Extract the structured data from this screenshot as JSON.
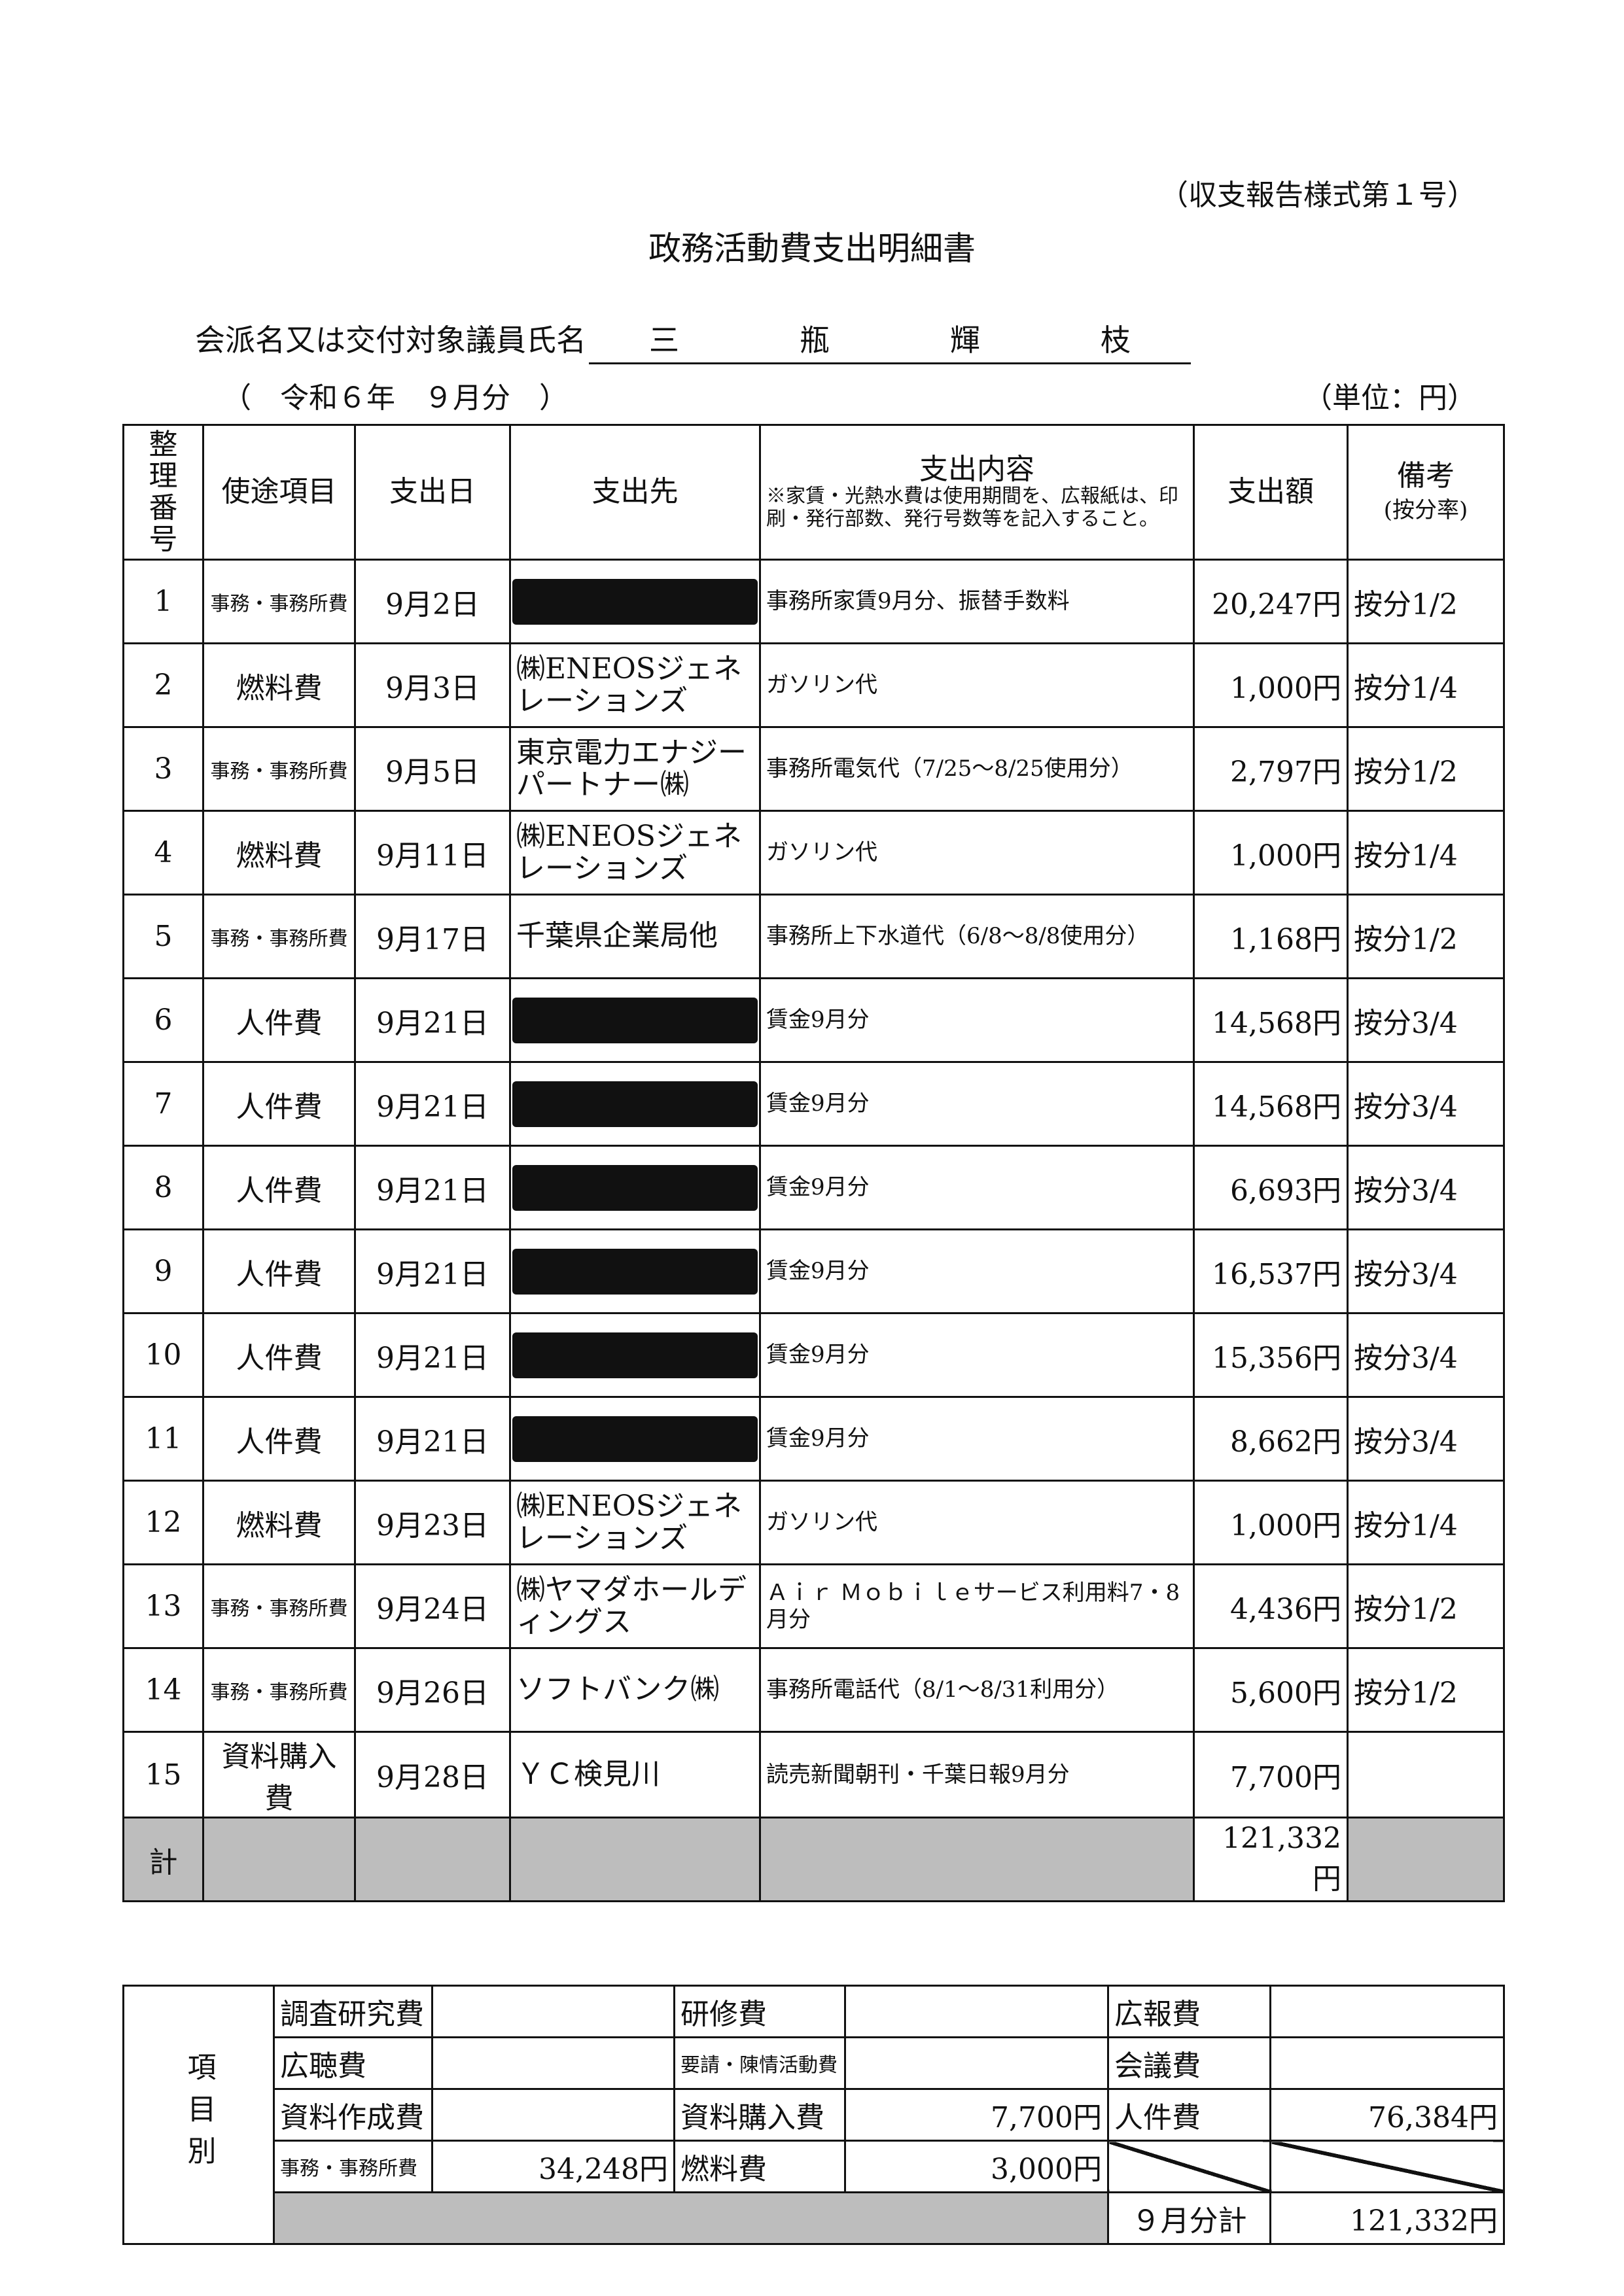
{
  "header": {
    "form_no": "（収支報告様式第１号）",
    "title": "政務活動費支出明細書",
    "name_label": "会派名又は交付対象議員氏名",
    "name_chars": [
      "三",
      "瓶",
      "輝",
      "枝"
    ],
    "period": "（　令和６年　９月分　）",
    "unit": "（単位：円）"
  },
  "columns": {
    "no": "整理番号",
    "category": "使途項目",
    "date": "支出日",
    "payee": "支出先",
    "content": "支出内容",
    "content_note": "※家賃・光熱水費は使用期間を、広報紙は、印刷・発行部数、発行号数等を記入すること。",
    "amount": "支出額",
    "remarks": "備考",
    "remarks_sub": "(按分率)"
  },
  "rows": [
    {
      "no": "1",
      "category": "事務・事務所費",
      "date": "9月2日",
      "payee": "",
      "redacted": true,
      "content": "事務所家賃9月分、振替手数料",
      "amount": "20,247円",
      "remarks": "按分1/2"
    },
    {
      "no": "2",
      "category": "燃料費",
      "date": "9月3日",
      "payee": "㈱ENEOSジェネレーションズ",
      "redacted": false,
      "content": "ガソリン代",
      "amount": "1,000円",
      "remarks": "按分1/4"
    },
    {
      "no": "3",
      "category": "事務・事務所費",
      "date": "9月5日",
      "payee": "東京電力エナジーパートナー㈱",
      "redacted": false,
      "content": "事務所電気代（7/25～8/25使用分）",
      "amount": "2,797円",
      "remarks": "按分1/2"
    },
    {
      "no": "4",
      "category": "燃料費",
      "date": "9月11日",
      "payee": "㈱ENEOSジェネレーションズ",
      "redacted": false,
      "content": "ガソリン代",
      "amount": "1,000円",
      "remarks": "按分1/4"
    },
    {
      "no": "5",
      "category": "事務・事務所費",
      "date": "9月17日",
      "payee": "千葉県企業局他",
      "redacted": false,
      "content": "事務所上下水道代（6/8～8/8使用分）",
      "amount": "1,168円",
      "remarks": "按分1/2"
    },
    {
      "no": "6",
      "category": "人件費",
      "date": "9月21日",
      "payee": "",
      "redacted": true,
      "content": "賃金9月分",
      "amount": "14,568円",
      "remarks": "按分3/4"
    },
    {
      "no": "7",
      "category": "人件費",
      "date": "9月21日",
      "payee": "",
      "redacted": true,
      "content": "賃金9月分",
      "amount": "14,568円",
      "remarks": "按分3/4"
    },
    {
      "no": "8",
      "category": "人件費",
      "date": "9月21日",
      "payee": "",
      "redacted": true,
      "content": "賃金9月分",
      "amount": "6,693円",
      "remarks": "按分3/4"
    },
    {
      "no": "9",
      "category": "人件費",
      "date": "9月21日",
      "payee": "",
      "redacted": true,
      "content": "賃金9月分",
      "amount": "16,537円",
      "remarks": "按分3/4"
    },
    {
      "no": "10",
      "category": "人件費",
      "date": "9月21日",
      "payee": "",
      "redacted": true,
      "content": "賃金9月分",
      "amount": "15,356円",
      "remarks": "按分3/4"
    },
    {
      "no": "11",
      "category": "人件費",
      "date": "9月21日",
      "payee": "",
      "redacted": true,
      "content": "賃金9月分",
      "amount": "8,662円",
      "remarks": "按分3/4"
    },
    {
      "no": "12",
      "category": "燃料費",
      "date": "9月23日",
      "payee": "㈱ENEOSジェネレーションズ",
      "redacted": false,
      "content": "ガソリン代",
      "amount": "1,000円",
      "remarks": "按分1/4"
    },
    {
      "no": "13",
      "category": "事務・事務所費",
      "date": "9月24日",
      "payee": "㈱ヤマダホールディングス",
      "redacted": false,
      "content": "Ａｉｒ Ｍｏｂｉｌｅサービス利用料7・8月分",
      "amount": "4,436円",
      "remarks": "按分1/2"
    },
    {
      "no": "14",
      "category": "事務・事務所費",
      "date": "9月26日",
      "payee": "ソフトバンク㈱",
      "redacted": false,
      "content": "事務所電話代（8/1～8/31利用分）",
      "amount": "5,600円",
      "remarks": "按分1/2"
    },
    {
      "no": "15",
      "category": "資料購入費",
      "date": "9月28日",
      "payee": "ＹＣ検見川",
      "redacted": false,
      "content": "読売新聞朝刊・千葉日報9月分",
      "amount": "7,700円",
      "remarks": ""
    }
  ],
  "total": {
    "label": "計",
    "amount": "121,332円"
  },
  "summary": {
    "side_label": "項目別",
    "cells": [
      [
        "調査研究費",
        "",
        "研修費",
        "",
        "広報費",
        ""
      ],
      [
        "広聴費",
        "",
        "要請・陳情活動費",
        "",
        "会議費",
        ""
      ],
      [
        "資料作成費",
        "",
        "資料購入費",
        "7,700円",
        "人件費",
        "76,384円"
      ],
      [
        "事務・事務所費",
        "34,248円",
        "燃料費",
        "3,000円",
        "",
        ""
      ]
    ],
    "month_total_label": "９月分計",
    "month_total": "121,332円"
  }
}
